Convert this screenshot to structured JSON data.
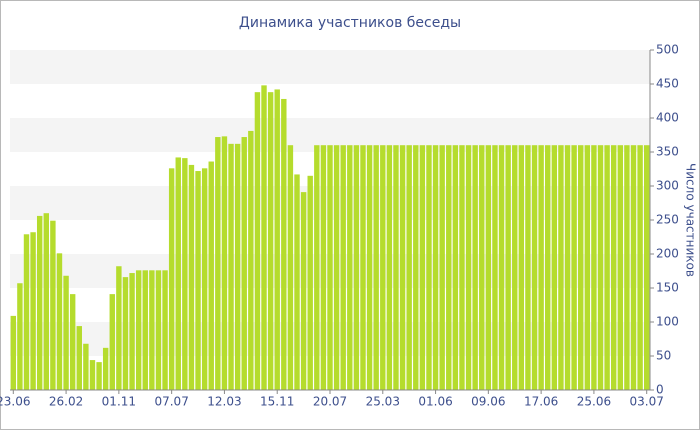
{
  "chart_data": {
    "type": "bar",
    "title": "Динамика участников беседы",
    "y_label": "Число участников",
    "categories": [
      "23.06",
      null,
      null,
      null,
      null,
      null,
      null,
      null,
      "26.02",
      null,
      null,
      null,
      null,
      null,
      null,
      null,
      "01.11",
      null,
      null,
      null,
      null,
      null,
      null,
      null,
      "07.07",
      null,
      null,
      null,
      null,
      null,
      null,
      null,
      "12.03",
      null,
      null,
      null,
      null,
      null,
      null,
      null,
      "15.11",
      null,
      null,
      null,
      null,
      null,
      null,
      null,
      "20.07",
      null,
      null,
      null,
      null,
      null,
      null,
      null,
      "25.03",
      null,
      null,
      null,
      null,
      null,
      null,
      null,
      "01.06",
      null,
      null,
      null,
      null,
      null,
      null,
      null,
      "09.06",
      null,
      null,
      null,
      null,
      null,
      null,
      null,
      "17.06",
      null,
      null,
      null,
      null,
      null,
      null,
      null,
      "25.06",
      null,
      null,
      null,
      null,
      null,
      null,
      null,
      "03.07"
    ],
    "values": [
      109,
      157,
      229,
      232,
      256,
      260,
      249,
      201,
      168,
      141,
      94,
      68,
      44,
      41,
      62,
      141,
      182,
      166,
      172,
      176,
      176,
      176,
      176,
      176,
      326,
      342,
      341,
      331,
      322,
      326,
      336,
      372,
      373,
      362,
      362,
      372,
      381,
      438,
      448,
      438,
      442,
      428,
      360,
      317,
      291,
      315,
      360,
      360,
      360,
      360,
      360,
      360,
      360,
      360,
      360,
      360,
      360,
      360,
      360,
      360,
      360,
      360,
      360,
      360,
      360,
      360,
      360,
      360,
      360,
      360,
      360,
      360,
      360,
      360,
      360,
      360,
      360,
      360,
      360,
      360,
      360,
      360,
      360,
      360,
      360,
      360,
      360,
      360,
      360,
      360,
      360,
      360,
      360,
      360,
      360,
      360,
      360
    ],
    "color": "#b5dc2d",
    "ylim": [
      0,
      500
    ],
    "yticks": [
      0,
      50,
      100,
      150,
      200,
      250,
      300,
      350,
      400,
      450,
      500
    ],
    "grid": true
  }
}
